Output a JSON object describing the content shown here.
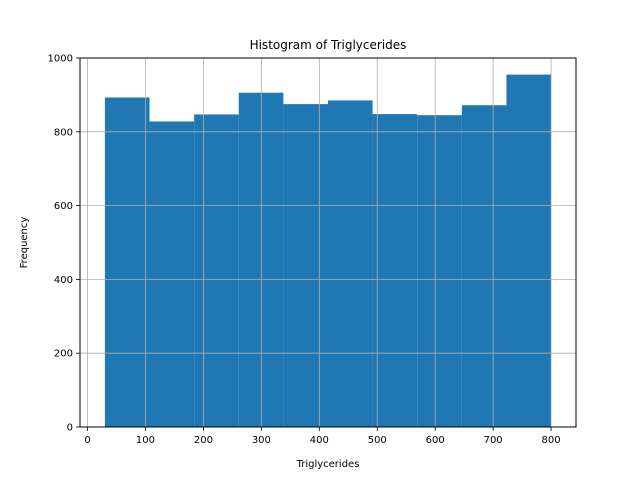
{
  "chart_data": {
    "type": "bar",
    "title": "Histogram of Triglycerides",
    "xlabel": "Triglycerides",
    "ylabel": "Frequency",
    "bin_edges": [
      30,
      107,
      184,
      261,
      338,
      415,
      492,
      569,
      646,
      723,
      800
    ],
    "values": [
      893,
      828,
      847,
      906,
      875,
      885,
      848,
      845,
      872,
      955
    ],
    "xlim": [
      -13,
      843
    ],
    "ylim": [
      0,
      1000
    ],
    "xticks": [
      0,
      100,
      200,
      300,
      400,
      500,
      600,
      700,
      800
    ],
    "yticks": [
      0,
      200,
      400,
      600,
      800,
      1000
    ],
    "grid": true,
    "legend": "none",
    "bar_color": "#1f77b4",
    "grid_color": "#b0b0b0"
  }
}
